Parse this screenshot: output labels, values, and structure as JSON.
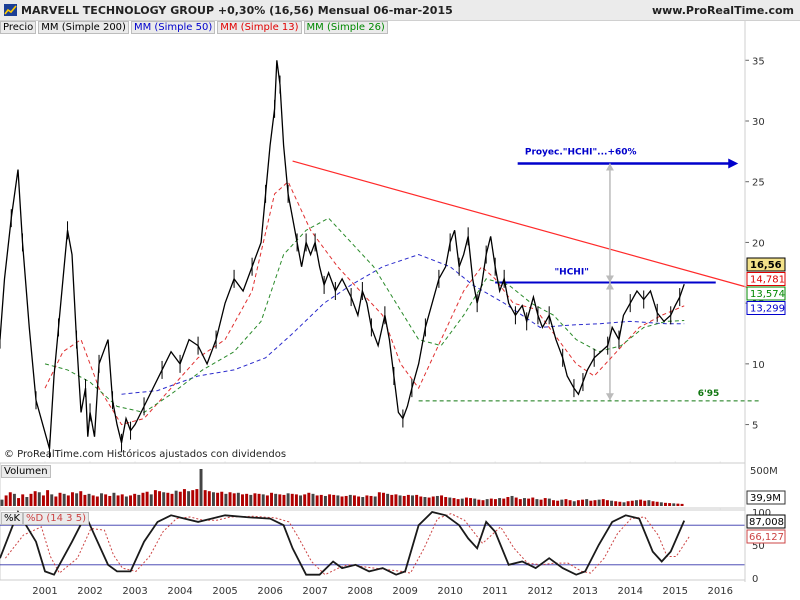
{
  "header": {
    "symbol_line": "MARVELL TECHNOLOGY GROUP   +0,30% (16,56)   Mensual   06-mar-2015",
    "site": "www.ProRealTime.com"
  },
  "legend": [
    {
      "label": "Precio",
      "color": "#000000"
    },
    {
      "label": "MM (Simple 200)",
      "color": "#000000"
    },
    {
      "label": "MM (Simple 50)",
      "color": "#0000cc"
    },
    {
      "label": "MM (Simple 13)",
      "color": "#e00000"
    },
    {
      "label": "MM (Simple 26)",
      "color": "#008800"
    }
  ],
  "copyright": "© ProRealTime.com  Históricos ajustados con dividendos",
  "panels": {
    "volume_label": "Volumen",
    "stoch_label_k": "%K",
    "stoch_label_d": "%D (14 3 5)"
  },
  "colors": {
    "price": "#000000",
    "sma50": "#2b2bcc",
    "sma13": "#e03030",
    "sma26": "#2a8a2a",
    "trendline": "#ff2a2a",
    "hchi": "#0000cc",
    "support": "#117711",
    "volume": "#b00000",
    "stoch_k": "#1a1a1a",
    "stoch_d": "#cc4444"
  },
  "chart_data": {
    "type": "line",
    "frequency": "monthly",
    "x_axis": {
      "ticks": [
        "2001",
        "2002",
        "2003",
        "2004",
        "2005",
        "2006",
        "2007",
        "2008",
        "2009",
        "2010",
        "2011",
        "2012",
        "2013",
        "2014",
        "2015",
        "2016"
      ]
    },
    "price_axis": {
      "min": 2,
      "max": 37,
      "ticks": [
        5,
        10,
        15,
        20,
        25,
        30,
        35
      ]
    },
    "price_path": [
      [
        2000.0,
        12
      ],
      [
        2000.1,
        17
      ],
      [
        2000.25,
        22
      ],
      [
        2000.4,
        26
      ],
      [
        2000.5,
        20
      ],
      [
        2000.65,
        13
      ],
      [
        2000.8,
        7
      ],
      [
        2000.95,
        5
      ],
      [
        2001.1,
        3
      ],
      [
        2001.2,
        9
      ],
      [
        2001.3,
        13
      ],
      [
        2001.4,
        17
      ],
      [
        2001.5,
        21
      ],
      [
        2001.6,
        19
      ],
      [
        2001.7,
        12
      ],
      [
        2001.8,
        6
      ],
      [
        2001.9,
        8
      ],
      [
        2001.95,
        4
      ],
      [
        2002.0,
        6
      ],
      [
        2002.1,
        4
      ],
      [
        2002.2,
        10
      ],
      [
        2002.4,
        12
      ],
      [
        2002.5,
        7
      ],
      [
        2002.6,
        5
      ],
      [
        2002.7,
        3.5
      ],
      [
        2002.8,
        5.5
      ],
      [
        2002.9,
        4.5
      ],
      [
        2003.0,
        5
      ],
      [
        2003.2,
        6.5
      ],
      [
        2003.4,
        8
      ],
      [
        2003.6,
        9.5
      ],
      [
        2003.8,
        11
      ],
      [
        2004.0,
        10
      ],
      [
        2004.2,
        12
      ],
      [
        2004.4,
        11.5
      ],
      [
        2004.6,
        10
      ],
      [
        2004.8,
        12
      ],
      [
        2005.0,
        15
      ],
      [
        2005.2,
        17
      ],
      [
        2005.4,
        16
      ],
      [
        2005.6,
        18
      ],
      [
        2005.8,
        20
      ],
      [
        2005.9,
        24
      ],
      [
        2006.0,
        28
      ],
      [
        2006.1,
        31
      ],
      [
        2006.15,
        35
      ],
      [
        2006.22,
        33
      ],
      [
        2006.3,
        28
      ],
      [
        2006.4,
        24
      ],
      [
        2006.5,
        22
      ],
      [
        2006.6,
        20
      ],
      [
        2006.7,
        18
      ],
      [
        2006.8,
        20
      ],
      [
        2006.9,
        19
      ],
      [
        2007.0,
        20
      ],
      [
        2007.1,
        18
      ],
      [
        2007.2,
        16.5
      ],
      [
        2007.3,
        17.5
      ],
      [
        2007.45,
        16
      ],
      [
        2007.6,
        17
      ],
      [
        2007.8,
        15.5
      ],
      [
        2007.95,
        14
      ],
      [
        2008.05,
        16
      ],
      [
        2008.15,
        15
      ],
      [
        2008.25,
        13
      ],
      [
        2008.4,
        11.5
      ],
      [
        2008.55,
        14
      ],
      [
        2008.65,
        12
      ],
      [
        2008.75,
        9
      ],
      [
        2008.85,
        6
      ],
      [
        2008.95,
        5.5
      ],
      [
        2009.05,
        6.5
      ],
      [
        2009.15,
        8
      ],
      [
        2009.3,
        10
      ],
      [
        2009.45,
        13
      ],
      [
        2009.6,
        15
      ],
      [
        2009.75,
        17
      ],
      [
        2009.9,
        18
      ],
      [
        2010.0,
        20
      ],
      [
        2010.1,
        21
      ],
      [
        2010.2,
        18
      ],
      [
        2010.3,
        19
      ],
      [
        2010.4,
        20.5
      ],
      [
        2010.5,
        17
      ],
      [
        2010.6,
        15
      ],
      [
        2010.7,
        16.5
      ],
      [
        2010.8,
        19
      ],
      [
        2010.9,
        20.5
      ],
      [
        2011.0,
        18
      ],
      [
        2011.1,
        16
      ],
      [
        2011.2,
        17
      ],
      [
        2011.3,
        15
      ],
      [
        2011.45,
        14
      ],
      [
        2011.6,
        14.8
      ],
      [
        2011.7,
        13.5
      ],
      [
        2011.85,
        15.5
      ],
      [
        2011.95,
        14
      ],
      [
        2012.05,
        13
      ],
      [
        2012.2,
        14
      ],
      [
        2012.35,
        12
      ],
      [
        2012.5,
        10.5
      ],
      [
        2012.6,
        9
      ],
      [
        2012.75,
        8
      ],
      [
        2012.85,
        7.5
      ],
      [
        2012.95,
        8.5
      ],
      [
        2013.05,
        9.5
      ],
      [
        2013.2,
        10.5
      ],
      [
        2013.35,
        11
      ],
      [
        2013.5,
        11.5
      ],
      [
        2013.6,
        13
      ],
      [
        2013.75,
        12
      ],
      [
        2013.85,
        14
      ],
      [
        2014.0,
        15
      ],
      [
        2014.15,
        16
      ],
      [
        2014.3,
        15.3
      ],
      [
        2014.45,
        16
      ],
      [
        2014.6,
        14.2
      ],
      [
        2014.75,
        13.5
      ],
      [
        2014.9,
        14
      ],
      [
        2015.0,
        14.8
      ],
      [
        2015.1,
        15.5
      ],
      [
        2015.2,
        16.56
      ]
    ],
    "series": [
      {
        "name": "MM (Simple 200)",
        "values": []
      },
      {
        "name": "MM (Simple 50)",
        "x": [
          2002.7,
          2003.5,
          2004.4,
          2005.2,
          2005.9,
          2006.5,
          2007.2,
          2007.8,
          2008.5,
          2009.3,
          2010.0,
          2010.5,
          2011.2,
          2012.0,
          2012.7,
          2013.3,
          2014.0,
          2014.8,
          2015.2
        ],
        "values": [
          7.5,
          7.8,
          9,
          9.5,
          10.5,
          12.5,
          15,
          16.5,
          18,
          19,
          18,
          16.5,
          15,
          13,
          13.2,
          13.3,
          13.5,
          13.3,
          13.3
        ]
      },
      {
        "name": "MM (Simple 13)",
        "x": [
          2001.0,
          2001.4,
          2001.8,
          2002.2,
          2002.7,
          2003.2,
          2003.8,
          2004.4,
          2005.0,
          2005.6,
          2006.1,
          2006.4,
          2006.9,
          2007.5,
          2008.0,
          2008.5,
          2008.9,
          2009.3,
          2009.8,
          2010.3,
          2010.7,
          2011.0,
          2011.4,
          2011.9,
          2012.4,
          2012.8,
          2013.2,
          2013.7,
          2014.2,
          2014.7,
          2015.2
        ],
        "values": [
          8,
          11,
          12,
          8,
          5,
          5.5,
          8,
          10.5,
          12,
          16,
          24,
          25,
          21,
          18,
          16,
          14,
          10,
          8,
          12,
          16,
          18,
          17,
          15,
          14.5,
          12,
          10,
          9,
          11,
          13,
          14,
          14.78
        ]
      },
      {
        "name": "MM (Simple 26)",
        "x": [
          2001.0,
          2001.5,
          2002.0,
          2002.6,
          2003.2,
          2003.8,
          2004.5,
          2005.2,
          2005.8,
          2006.3,
          2006.8,
          2007.3,
          2007.8,
          2008.3,
          2008.8,
          2009.3,
          2009.8,
          2010.3,
          2010.8,
          2011.3,
          2011.8,
          2012.3,
          2012.8,
          2013.3,
          2013.8,
          2014.3,
          2014.8,
          2015.2
        ],
        "values": [
          10,
          9.5,
          8.5,
          6.5,
          6,
          7.5,
          9.5,
          11,
          13.5,
          19,
          21,
          22,
          20,
          18,
          15,
          12,
          11.5,
          14,
          17,
          16.5,
          15,
          14,
          12,
          11,
          11.5,
          13,
          13.5,
          13.57
        ]
      }
    ],
    "badges": [
      {
        "value": "16,56",
        "price": 16.56,
        "color": "#000000",
        "filled": true
      },
      {
        "value": "14,781",
        "price": 14.781,
        "color": "#e00000",
        "filled": false
      },
      {
        "value": "13,574",
        "price": 13.574,
        "color": "#008800",
        "filled": false
      },
      {
        "value": "13,299",
        "price": 13.299,
        "color": "#0000cc",
        "filled": false
      }
    ],
    "annotations": {
      "trendline": {
        "from": [
          2006.5,
          26.7
        ],
        "to": [
          2016.9,
          16.0
        ]
      },
      "hchi_line": {
        "from": [
          2011.0,
          16.7
        ],
        "to": [
          2015.9,
          16.7
        ],
        "label": "\"HCHI\""
      },
      "projection": {
        "from": [
          2011.5,
          26.5
        ],
        "to": [
          2016.4,
          26.5
        ],
        "label": "Proyec.\"HCHI\"...+60%"
      },
      "measure_arrows": [
        {
          "x": 2013.55,
          "from": 16.7,
          "to": 26.5
        },
        {
          "x": 2013.55,
          "from": 7.0,
          "to": 16.7
        }
      ],
      "support": {
        "from": 2009.3,
        "to": 2016.9,
        "price": 6.95,
        "label": "6'95"
      }
    },
    "volume": {
      "axis_labels": [
        "500M",
        "39,9M"
      ],
      "values_m": [
        120,
        200,
        260,
        230,
        150,
        220,
        170,
        230,
        280,
        260,
        200,
        300,
        220,
        180,
        250,
        230,
        200,
        260,
        240,
        280,
        210,
        230,
        200,
        180,
        240,
        220,
        190,
        250,
        200,
        220,
        180,
        200,
        230,
        210,
        250,
        270,
        220,
        300,
        280,
        260,
        250,
        230,
        290,
        270,
        320,
        280,
        300,
        320,
        700,
        300,
        280,
        260,
        250,
        270,
        230,
        260,
        240,
        250,
        220,
        230,
        210,
        240,
        230,
        220,
        200,
        250,
        230,
        220,
        210,
        240,
        230,
        220,
        200,
        220,
        250,
        230,
        200,
        210,
        190,
        220,
        210,
        200,
        180,
        190,
        210,
        200,
        180,
        170,
        200,
        190,
        180,
        260,
        250,
        230,
        210,
        220,
        200,
        190,
        210,
        200,
        210,
        180,
        170,
        160,
        180,
        190,
        200,
        170,
        160,
        150,
        130,
        140,
        160,
        150,
        140,
        120,
        110,
        130,
        140,
        130,
        150,
        140,
        170,
        190,
        160,
        130,
        150,
        140,
        160,
        130,
        120,
        150,
        140,
        110,
        100,
        120,
        130,
        110,
        90,
        110,
        120,
        130,
        100,
        110,
        120,
        130,
        110,
        100,
        90,
        80,
        70,
        90,
        100,
        110,
        120,
        100,
        110,
        90,
        80,
        70,
        60,
        55,
        50,
        45,
        40
      ],
      "last": 39.9
    },
    "stochastic": {
      "period": "14 3 5",
      "axis_ticks": [
        0,
        50,
        100
      ],
      "last_k": 87.008,
      "last_d": 66.127,
      "k_path": [
        [
          2000.0,
          30
        ],
        [
          2000.4,
          100
        ],
        [
          2000.8,
          55
        ],
        [
          2001.0,
          10
        ],
        [
          2001.2,
          5
        ],
        [
          2001.6,
          55
        ],
        [
          2001.9,
          95
        ],
        [
          2002.2,
          50
        ],
        [
          2002.4,
          20
        ],
        [
          2002.6,
          10
        ],
        [
          2002.9,
          10
        ],
        [
          2003.2,
          55
        ],
        [
          2003.5,
          85
        ],
        [
          2003.8,
          95
        ],
        [
          2004.1,
          90
        ],
        [
          2004.4,
          85
        ],
        [
          2004.7,
          90
        ],
        [
          2005.0,
          95
        ],
        [
          2005.5,
          92
        ],
        [
          2006.0,
          90
        ],
        [
          2006.3,
          80
        ],
        [
          2006.5,
          45
        ],
        [
          2006.8,
          5
        ],
        [
          2007.1,
          5
        ],
        [
          2007.4,
          25
        ],
        [
          2007.6,
          15
        ],
        [
          2007.9,
          20
        ],
        [
          2008.2,
          10
        ],
        [
          2008.5,
          15
        ],
        [
          2008.8,
          5
        ],
        [
          2009.0,
          10
        ],
        [
          2009.3,
          80
        ],
        [
          2009.6,
          100
        ],
        [
          2009.9,
          95
        ],
        [
          2010.2,
          80
        ],
        [
          2010.4,
          60
        ],
        [
          2010.6,
          45
        ],
        [
          2010.8,
          85
        ],
        [
          2011.0,
          70
        ],
        [
          2011.3,
          20
        ],
        [
          2011.6,
          25
        ],
        [
          2011.9,
          15
        ],
        [
          2012.2,
          30
        ],
        [
          2012.5,
          15
        ],
        [
          2012.8,
          5
        ],
        [
          2013.0,
          10
        ],
        [
          2013.3,
          50
        ],
        [
          2013.6,
          85
        ],
        [
          2013.9,
          95
        ],
        [
          2014.2,
          90
        ],
        [
          2014.5,
          40
        ],
        [
          2014.7,
          25
        ],
        [
          2014.9,
          40
        ],
        [
          2015.2,
          87
        ]
      ]
    }
  }
}
